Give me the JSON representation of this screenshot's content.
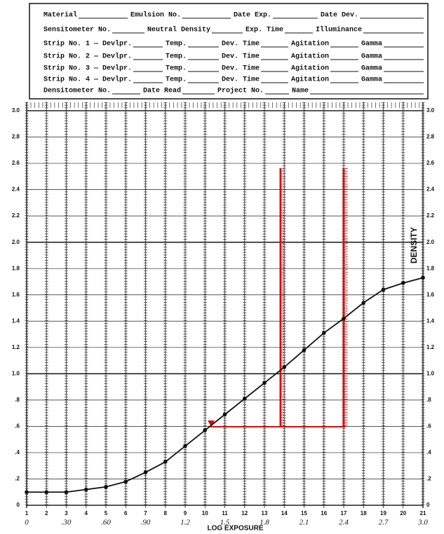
{
  "form": {
    "rows": [
      [
        "Material",
        "Emulsion No.",
        "Date Exp.",
        "Date Dev."
      ],
      [
        "Sensitometer No.",
        "Neutral Density",
        "Exp. Time",
        "Illuminance"
      ],
      [
        "Strip No. 1 — Devlpr.",
        "Temp.",
        "Dev. Time",
        "Agitation",
        "Gamma"
      ],
      [
        "Strip No. 2 — Devlpr.",
        "Temp.",
        "Dev. Time",
        "Agitation",
        "Gamma"
      ],
      [
        "Strip No. 3 — Devlpr.",
        "Temp.",
        "Dev. Time",
        "Agitation",
        "Gamma"
      ],
      [
        "Strip No. 4 — Devlpr.",
        "Temp.",
        "Dev. Time",
        "Agitation",
        "Gamma"
      ],
      [
        "Densitometer No.",
        "Date Read",
        "Project No.",
        "Name"
      ]
    ]
  },
  "chart_data": {
    "type": "line",
    "ylabel": "DENSITY",
    "x2label": "LOG EXPOSURE",
    "x": [
      1,
      2,
      3,
      4,
      5,
      6,
      7,
      8,
      9,
      10,
      11,
      12,
      13,
      14,
      15,
      16,
      17,
      18,
      19,
      20,
      21
    ],
    "values": [
      0.1,
      0.1,
      0.1,
      0.12,
      0.14,
      0.18,
      0.25,
      0.33,
      0.45,
      0.57,
      0.69,
      0.81,
      0.93,
      1.05,
      1.18,
      1.31,
      1.42,
      1.54,
      1.64,
      1.69,
      1.73
    ],
    "color": "#111111",
    "xlim": [
      1,
      21
    ],
    "xticks": [
      1,
      2,
      3,
      4,
      5,
      6,
      7,
      8,
      9,
      10,
      11,
      12,
      13,
      14,
      15,
      16,
      17,
      18,
      19,
      20,
      21
    ],
    "x2lim": [
      0,
      3
    ],
    "x2ticks": [
      0,
      {
        "value": 0.3,
        "label": ".30"
      },
      {
        "value": 0.6,
        "label": ".60"
      },
      {
        "value": 0.9,
        "label": ".90"
      },
      1.2,
      1.5,
      1.8,
      2.1,
      2.4,
      2.7,
      {
        "value": 3,
        "label": "3.0"
      }
    ],
    "ylim": [
      0,
      3
    ],
    "yticks": [
      0,
      {
        "value": 0.2,
        "label": ".2"
      },
      {
        "value": 0.4,
        "label": ".4"
      },
      {
        "value": 0.6,
        "label": ".6"
      },
      {
        "value": 0.8,
        "label": ".8"
      },
      {
        "value": 1,
        "label": "1.0"
      },
      1.2,
      1.4,
      1.6,
      1.8,
      {
        "value": 2,
        "label": "2.0"
      },
      2.2,
      2.4,
      2.6,
      2.8,
      {
        "value": 3,
        "label": "3.0"
      }
    ],
    "grid": true
  }
}
